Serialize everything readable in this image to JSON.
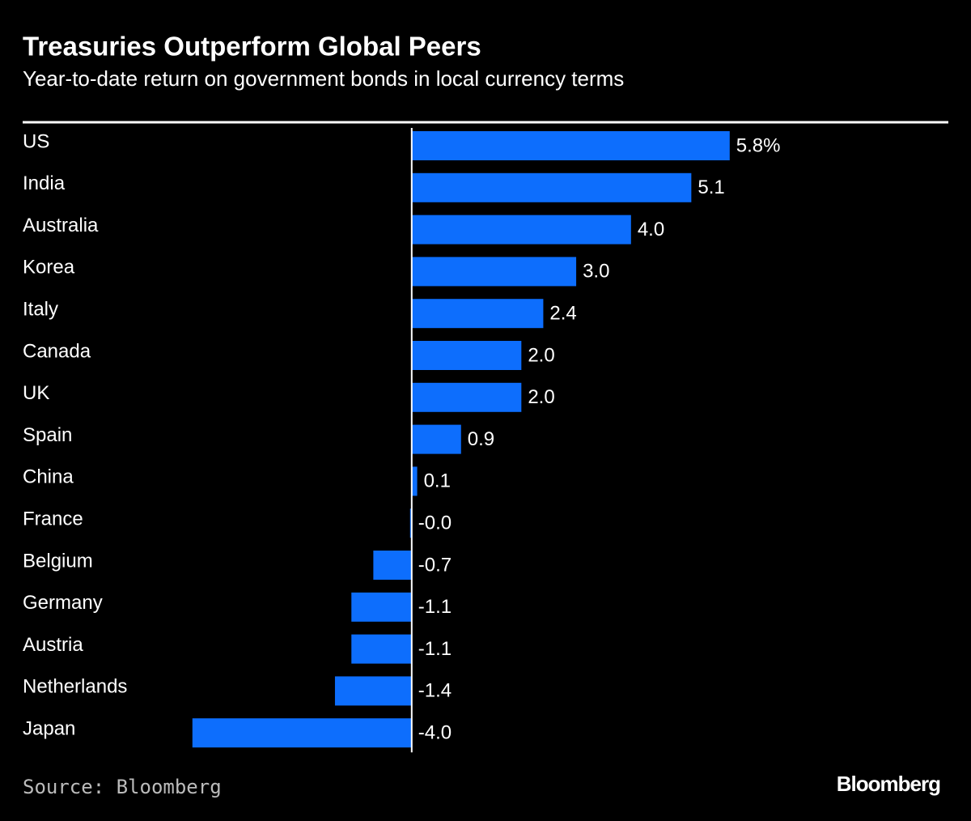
{
  "chart_data": {
    "type": "bar",
    "orientation": "horizontal",
    "title": "Treasuries Outperform Global Peers",
    "subtitle": "Year-to-date return on government bonds in local currency terms",
    "categories": [
      "US",
      "India",
      "Australia",
      "Korea",
      "Italy",
      "Canada",
      "UK",
      "Spain",
      "China",
      "France",
      "Belgium",
      "Germany",
      "Austria",
      "Netherlands",
      "Japan"
    ],
    "values": [
      5.8,
      5.1,
      4.0,
      3.0,
      2.4,
      2.0,
      2.0,
      0.9,
      0.1,
      -0.03,
      -0.7,
      -1.1,
      -1.1,
      -1.4,
      -4.0
    ],
    "value_labels": [
      "5.8%",
      "5.1",
      "4.0",
      "3.0",
      "2.4",
      "2.0",
      "2.0",
      "0.9",
      "0.1",
      "-0.0",
      "-0.7",
      "-1.1",
      "-1.1",
      "-1.4",
      "-4.0"
    ],
    "color": "#0d6efd",
    "xlim": [
      -4.1,
      6.6
    ],
    "source": "Source: Bloomberg",
    "logo": "Bloomberg"
  }
}
